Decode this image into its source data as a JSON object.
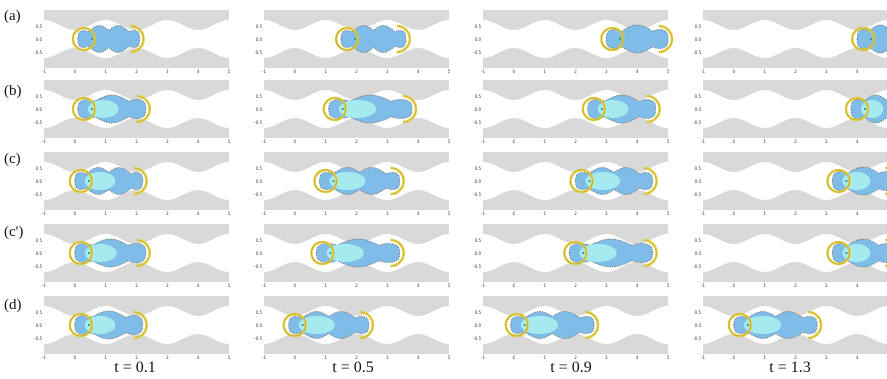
{
  "figure": {
    "row_labels": [
      "(a)",
      "(b)",
      "(c)",
      "(c')",
      "(d)"
    ],
    "time_labels": [
      "t = 0.1",
      "t = 0.5",
      "t = 0.9",
      "t = 1.3"
    ],
    "x_ticks": [
      "-1",
      "0",
      "1",
      "2",
      "3",
      "4",
      "5"
    ],
    "y_ticks": [
      "0.5",
      "0.0",
      "-0.5"
    ],
    "colors": {
      "wall": "#d9d9d9",
      "body_dark": "#7fbde8",
      "body_light": "#a8ecee",
      "outline": "#666666",
      "ring_yellow": "#e3cf45",
      "ring_dark": "#b99e10",
      "marker_green": "#2e8b57"
    },
    "panels": [
      [
        {
          "x0": 0.1,
          "L": 2.0,
          "lobes": 3,
          "light": false
        },
        {
          "x0": 1.5,
          "L": 2.1,
          "lobes": 3,
          "light": false
        },
        {
          "x0": 3.0,
          "L": 2.0,
          "lobes": 2,
          "light": false
        },
        {
          "x0": 4.0,
          "L": 1.5,
          "lobes": 2,
          "light": false
        }
      ],
      [
        {
          "x0": 0.1,
          "L": 2.2,
          "lobes": 2,
          "light": true
        },
        {
          "x0": 1.1,
          "L": 2.7,
          "lobes": 2,
          "light": true
        },
        {
          "x0": 2.4,
          "L": 2.2,
          "lobes": 2,
          "light": true
        },
        {
          "x0": 3.8,
          "L": 1.6,
          "lobes": 2,
          "light": true
        }
      ],
      [
        {
          "x0": 0.0,
          "L": 2.2,
          "lobes": 3,
          "light": true
        },
        {
          "x0": 0.8,
          "L": 2.6,
          "lobes": 3,
          "light": true
        },
        {
          "x0": 2.0,
          "L": 2.5,
          "lobes": 3,
          "light": true
        },
        {
          "x0": 3.2,
          "L": 2.0,
          "lobes": 2,
          "light": true
        }
      ],
      [
        {
          "x0": 0.0,
          "L": 2.3,
          "lobes": 2,
          "light": true
        },
        {
          "x0": 0.7,
          "L": 2.7,
          "lobes": 2,
          "light": true
        },
        {
          "x0": 1.8,
          "L": 2.7,
          "lobes": 2,
          "light": true
        },
        {
          "x0": 3.2,
          "L": 2.0,
          "lobes": 2,
          "light": true
        }
      ],
      [
        {
          "x0": 0.0,
          "L": 2.2,
          "lobes": 2,
          "light": true
        },
        {
          "x0": -0.2,
          "L": 2.6,
          "lobes": 3,
          "light": true
        },
        {
          "x0": -0.1,
          "L": 2.7,
          "lobes": 3,
          "light": true
        },
        {
          "x0": 0.0,
          "L": 2.7,
          "lobes": 3,
          "light": true
        }
      ]
    ]
  }
}
